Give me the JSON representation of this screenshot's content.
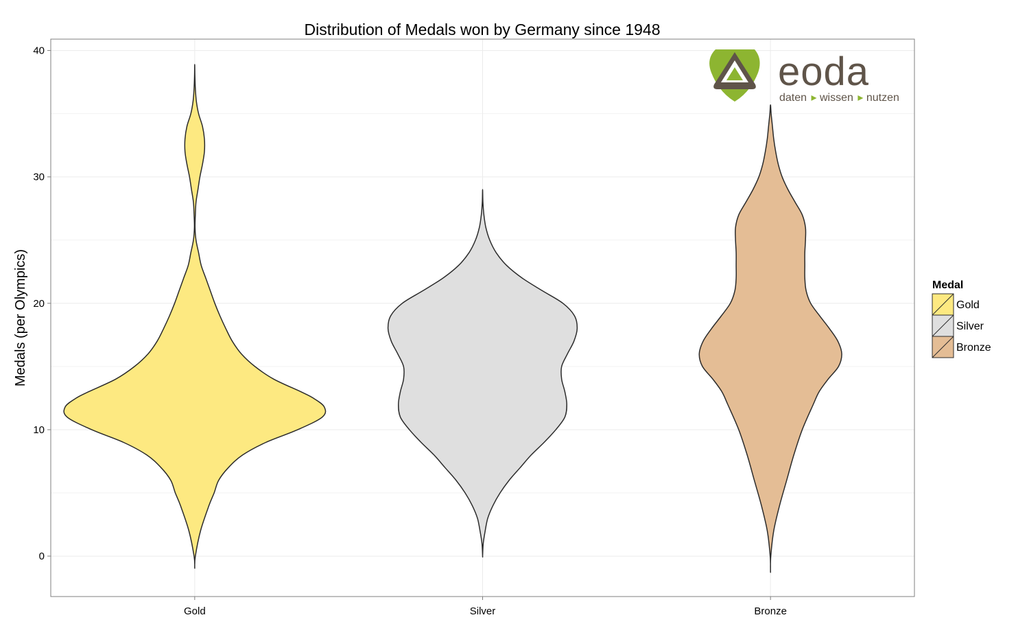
{
  "chart_data": {
    "type": "violin",
    "title": "Distribution of Medals won by Germany since 1948",
    "xlabel": "",
    "ylabel": "Medals (per Olympics)",
    "categories": [
      "Gold",
      "Silver",
      "Bronze"
    ],
    "ylim": [
      -3.2,
      40.9
    ],
    "yticks": [
      0,
      10,
      20,
      30,
      40
    ],
    "grid": true,
    "legend": {
      "title": "Medal",
      "position": "right",
      "entries": [
        "Gold",
        "Silver",
        "Bronze"
      ]
    },
    "colors": {
      "Gold": "#fde981",
      "Silver": "#dfdfdf",
      "Bronze": "#e4bd95"
    },
    "outline_color": "#2b2b2b",
    "series": [
      {
        "category": "Gold",
        "range": [
          -0.9,
          38.9
        ],
        "density_profile": [
          [
            -0.9,
            0.0
          ],
          [
            0.0,
            0.01
          ],
          [
            2.0,
            0.09
          ],
          [
            4.0,
            0.22
          ],
          [
            5.0,
            0.3
          ],
          [
            6.0,
            0.37
          ],
          [
            7.0,
            0.52
          ],
          [
            8.0,
            0.74
          ],
          [
            9.0,
            1.1
          ],
          [
            10.0,
            1.59
          ],
          [
            11.0,
            1.97
          ],
          [
            11.8,
            2.0
          ],
          [
            12.5,
            1.83
          ],
          [
            13.0,
            1.64
          ],
          [
            14.0,
            1.22
          ],
          [
            15.0,
            0.93
          ],
          [
            16.0,
            0.72
          ],
          [
            17.0,
            0.58
          ],
          [
            18.0,
            0.48
          ],
          [
            19.0,
            0.39
          ],
          [
            20.0,
            0.31
          ],
          [
            21.0,
            0.24
          ],
          [
            22.0,
            0.17
          ],
          [
            23.0,
            0.1
          ],
          [
            24.0,
            0.06
          ],
          [
            25.0,
            0.02
          ],
          [
            26.0,
            0.005
          ],
          [
            27.0,
            0.01
          ],
          [
            28.0,
            0.02
          ],
          [
            29.0,
            0.05
          ],
          [
            30.0,
            0.08
          ],
          [
            31.0,
            0.12
          ],
          [
            32.0,
            0.15
          ],
          [
            33.0,
            0.15
          ],
          [
            34.0,
            0.12
          ],
          [
            35.0,
            0.06
          ],
          [
            36.0,
            0.025
          ],
          [
            37.0,
            0.01
          ],
          [
            38.0,
            0.003
          ],
          [
            38.9,
            0.0
          ]
        ]
      },
      {
        "category": "Silver",
        "range": [
          0.0,
          29.0
        ],
        "density_profile": [
          [
            0.0,
            0.0
          ],
          [
            1.0,
            0.01
          ],
          [
            2.0,
            0.04
          ],
          [
            3.0,
            0.08
          ],
          [
            4.0,
            0.16
          ],
          [
            5.0,
            0.27
          ],
          [
            6.0,
            0.41
          ],
          [
            7.0,
            0.58
          ],
          [
            8.0,
            0.75
          ],
          [
            9.0,
            0.95
          ],
          [
            10.0,
            1.13
          ],
          [
            11.0,
            1.27
          ],
          [
            12.0,
            1.3
          ],
          [
            13.0,
            1.27
          ],
          [
            14.0,
            1.22
          ],
          [
            15.0,
            1.22
          ],
          [
            16.0,
            1.31
          ],
          [
            17.0,
            1.41
          ],
          [
            18.0,
            1.46
          ],
          [
            19.0,
            1.42
          ],
          [
            20.0,
            1.24
          ],
          [
            21.0,
            0.92
          ],
          [
            22.0,
            0.61
          ],
          [
            23.0,
            0.37
          ],
          [
            24.0,
            0.21
          ],
          [
            25.0,
            0.11
          ],
          [
            26.0,
            0.05
          ],
          [
            27.0,
            0.02
          ],
          [
            28.0,
            0.005
          ],
          [
            29.0,
            0.0
          ]
        ]
      },
      {
        "category": "Bronze",
        "range": [
          -1.2,
          35.7
        ],
        "density_profile": [
          [
            -1.2,
            0.0
          ],
          [
            0.0,
            0.005
          ],
          [
            2.0,
            0.05
          ],
          [
            4.0,
            0.14
          ],
          [
            6.0,
            0.25
          ],
          [
            8.0,
            0.36
          ],
          [
            10.0,
            0.49
          ],
          [
            12.0,
            0.66
          ],
          [
            13.0,
            0.75
          ],
          [
            14.0,
            0.89
          ],
          [
            15.0,
            1.05
          ],
          [
            16.0,
            1.1
          ],
          [
            17.0,
            1.04
          ],
          [
            18.0,
            0.91
          ],
          [
            19.0,
            0.76
          ],
          [
            20.0,
            0.62
          ],
          [
            21.0,
            0.55
          ],
          [
            22.0,
            0.53
          ],
          [
            23.0,
            0.53
          ],
          [
            24.0,
            0.53
          ],
          [
            25.0,
            0.54
          ],
          [
            26.0,
            0.54
          ],
          [
            27.0,
            0.49
          ],
          [
            28.0,
            0.38
          ],
          [
            29.0,
            0.27
          ],
          [
            30.0,
            0.18
          ],
          [
            31.0,
            0.12
          ],
          [
            32.0,
            0.08
          ],
          [
            33.0,
            0.05
          ],
          [
            34.0,
            0.03
          ],
          [
            35.0,
            0.01
          ],
          [
            35.7,
            0.0
          ]
        ]
      }
    ]
  },
  "logo": {
    "wordmark": "eoda",
    "tagline": [
      "daten",
      "wissen",
      "nutzen"
    ],
    "brand_green": "#8db531",
    "brand_brown": "#5f5449"
  }
}
